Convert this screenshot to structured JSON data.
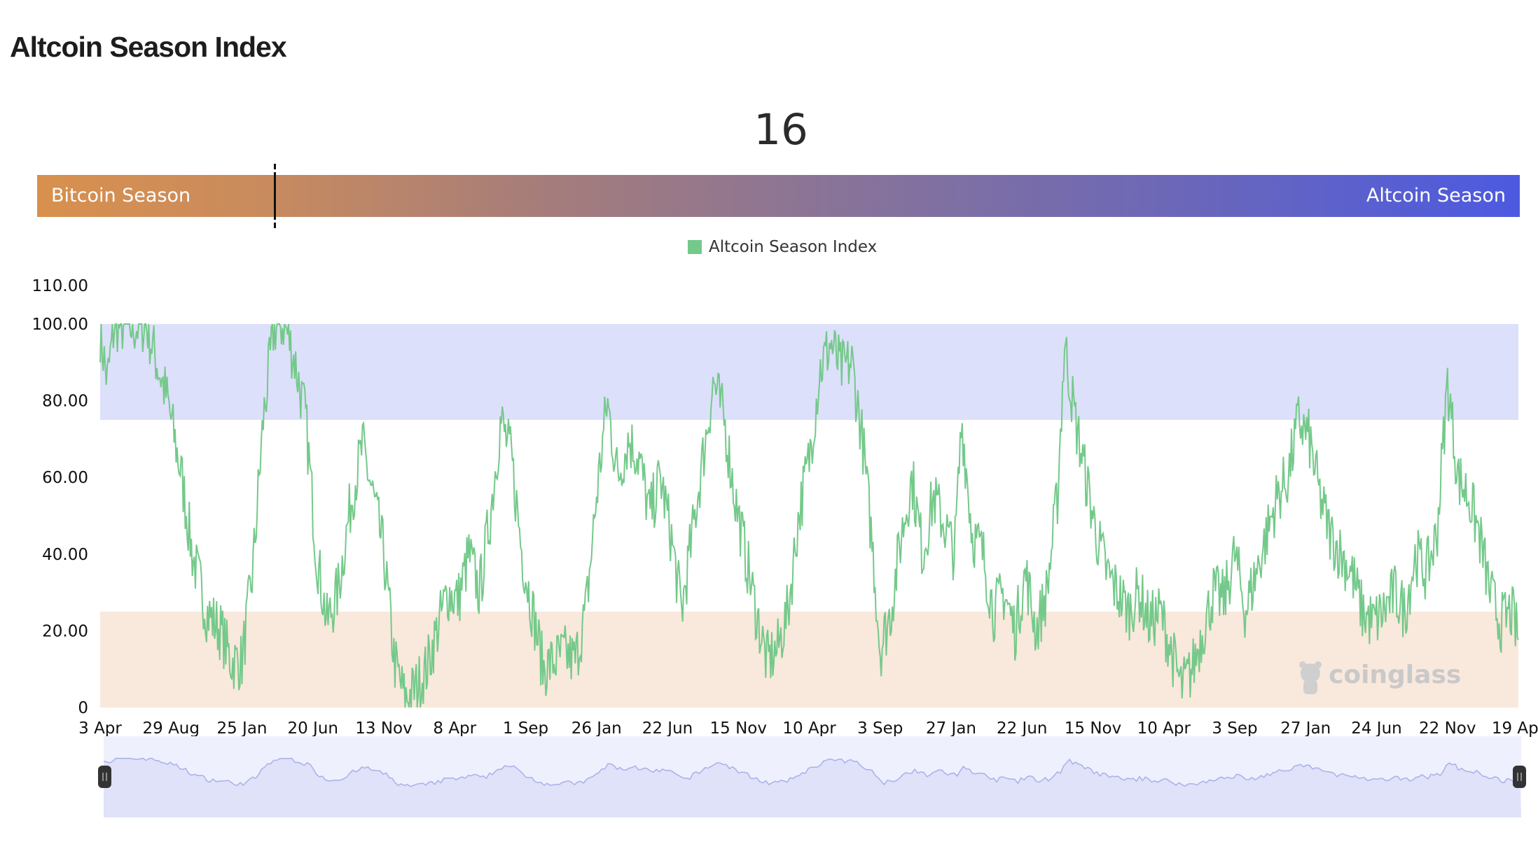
{
  "page": {
    "title": "Altcoin Season Index"
  },
  "gauge": {
    "value": "16",
    "value_num": 16,
    "left_label": "Bitcoin Season",
    "right_label": "Altcoin Season"
  },
  "legend": {
    "label": "Altcoin Season Index",
    "color": "#74c98a"
  },
  "watermark": {
    "text": "coinglass"
  },
  "colors": {
    "altcoin_zone": "#dde0fa",
    "bitcoin_zone": "#f9e8dc",
    "line": "#74c98a",
    "navigator_fill": "#dfe2f8",
    "navigator_bg": "#eef0fd"
  },
  "chart_data": {
    "type": "line",
    "title": "",
    "series_name": "Altcoin Season Index",
    "ylim": [
      0,
      110
    ],
    "yticks": [
      "0",
      "20.00",
      "40.00",
      "60.00",
      "80.00",
      "100.00",
      "110.00"
    ],
    "ytick_values": [
      0,
      20,
      40,
      60,
      80,
      100,
      110
    ],
    "xticks": [
      "3 Apr",
      "29 Aug",
      "25 Jan",
      "20 Jun",
      "13 Nov",
      "8 Apr",
      "1 Sep",
      "26 Jan",
      "22 Jun",
      "15 Nov",
      "10 Apr",
      "3 Sep",
      "27 Jan",
      "22 Jun",
      "15 Nov",
      "10 Apr",
      "3 Sep",
      "27 Jan",
      "24 Jun",
      "22 Nov",
      "19 Apr"
    ],
    "bands": [
      {
        "name": "Altcoin Season",
        "from": 75,
        "to": 100
      },
      {
        "name": "Bitcoin Season",
        "from": 0,
        "to": 25
      }
    ],
    "keypoints": [
      [
        0,
        98
      ],
      [
        0.1,
        85
      ],
      [
        0.2,
        100
      ],
      [
        0.45,
        99
      ],
      [
        0.65,
        100
      ],
      [
        0.8,
        90
      ],
      [
        0.95,
        80
      ],
      [
        1.15,
        60
      ],
      [
        1.3,
        40
      ],
      [
        1.5,
        25
      ],
      [
        1.7,
        20
      ],
      [
        1.85,
        12
      ],
      [
        2.0,
        12
      ],
      [
        2.15,
        35
      ],
      [
        2.3,
        75
      ],
      [
        2.45,
        99
      ],
      [
        2.6,
        100
      ],
      [
        2.75,
        90
      ],
      [
        2.9,
        75
      ],
      [
        3.05,
        40
      ],
      [
        3.2,
        22
      ],
      [
        3.35,
        30
      ],
      [
        3.55,
        55
      ],
      [
        3.7,
        68
      ],
      [
        3.85,
        55
      ],
      [
        4.0,
        40
      ],
      [
        4.15,
        12
      ],
      [
        4.3,
        2
      ],
      [
        4.45,
        5
      ],
      [
        4.6,
        10
      ],
      [
        4.75,
        20
      ],
      [
        4.9,
        30
      ],
      [
        5.05,
        28
      ],
      [
        5.2,
        40
      ],
      [
        5.35,
        30
      ],
      [
        5.5,
        50
      ],
      [
        5.65,
        75
      ],
      [
        5.8,
        65
      ],
      [
        5.95,
        40
      ],
      [
        6.1,
        25
      ],
      [
        6.25,
        10
      ],
      [
        6.4,
        12
      ],
      [
        6.55,
        14
      ],
      [
        6.7,
        12
      ],
      [
        6.85,
        25
      ],
      [
        7.0,
        55
      ],
      [
        7.15,
        80
      ],
      [
        7.3,
        60
      ],
      [
        7.45,
        70
      ],
      [
        7.6,
        65
      ],
      [
        7.75,
        50
      ],
      [
        7.9,
        60
      ],
      [
        8.05,
        45
      ],
      [
        8.2,
        25
      ],
      [
        8.35,
        45
      ],
      [
        8.5,
        65
      ],
      [
        8.65,
        85
      ],
      [
        8.8,
        75
      ],
      [
        8.95,
        55
      ],
      [
        9.1,
        40
      ],
      [
        9.25,
        25
      ],
      [
        9.4,
        12
      ],
      [
        9.55,
        15
      ],
      [
        9.7,
        25
      ],
      [
        9.85,
        50
      ],
      [
        10.0,
        65
      ],
      [
        10.15,
        88
      ],
      [
        10.3,
        95
      ],
      [
        10.45,
        88
      ],
      [
        10.6,
        90
      ],
      [
        10.75,
        70
      ],
      [
        10.9,
        40
      ],
      [
        11.0,
        15
      ],
      [
        11.15,
        25
      ],
      [
        11.3,
        45
      ],
      [
        11.45,
        60
      ],
      [
        11.6,
        40
      ],
      [
        11.75,
        55
      ],
      [
        11.9,
        48
      ],
      [
        12.05,
        40
      ],
      [
        12.15,
        75
      ],
      [
        12.3,
        45
      ],
      [
        12.45,
        40
      ],
      [
        12.6,
        25
      ],
      [
        12.75,
        30
      ],
      [
        12.9,
        20
      ],
      [
        13.05,
        35
      ],
      [
        13.2,
        20
      ],
      [
        13.35,
        30
      ],
      [
        13.5,
        55
      ],
      [
        13.6,
        95
      ],
      [
        13.75,
        75
      ],
      [
        13.9,
        60
      ],
      [
        14.05,
        45
      ],
      [
        14.2,
        35
      ],
      [
        14.35,
        30
      ],
      [
        14.5,
        25
      ],
      [
        14.65,
        30
      ],
      [
        14.8,
        22
      ],
      [
        14.95,
        25
      ],
      [
        15.1,
        15
      ],
      [
        15.25,
        5
      ],
      [
        15.4,
        10
      ],
      [
        15.55,
        20
      ],
      [
        15.7,
        30
      ],
      [
        15.85,
        28
      ],
      [
        16.0,
        40
      ],
      [
        16.15,
        25
      ],
      [
        16.3,
        35
      ],
      [
        16.45,
        45
      ],
      [
        16.6,
        55
      ],
      [
        16.75,
        60
      ],
      [
        16.9,
        75
      ],
      [
        17.05,
        70
      ],
      [
        17.2,
        55
      ],
      [
        17.35,
        45
      ],
      [
        17.5,
        40
      ],
      [
        17.65,
        35
      ],
      [
        17.8,
        25
      ],
      [
        17.95,
        22
      ],
      [
        18.1,
        25
      ],
      [
        18.25,
        30
      ],
      [
        18.4,
        25
      ],
      [
        18.55,
        40
      ],
      [
        18.7,
        35
      ],
      [
        18.85,
        45
      ],
      [
        19.0,
        85
      ],
      [
        19.15,
        60
      ],
      [
        19.3,
        55
      ],
      [
        19.45,
        45
      ],
      [
        19.6,
        30
      ],
      [
        19.75,
        22
      ],
      [
        19.9,
        25
      ],
      [
        20.0,
        18
      ]
    ]
  },
  "navigator": {
    "left_handle_icon": "handle-grip-icon",
    "right_handle_icon": "handle-grip-icon"
  }
}
